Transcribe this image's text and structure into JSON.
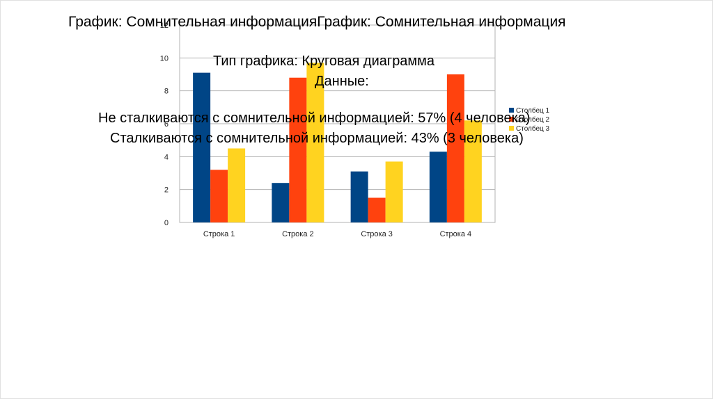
{
  "slide": {
    "title": "График: Сомнительная информацияГрафик: Сомнительная информация",
    "line_type": "Тип графика: Круговая диаграмма",
    "line_data": "Данные:",
    "line_stat1": "Не сталкиваются с сомнительной информацией: 57% (4 человека)",
    "line_stat2": "Сталкиваются с сомнительной информацией: 43% (3 человека)"
  },
  "chart_data": {
    "type": "bar",
    "categories": [
      "Строка 1",
      "Строка 2",
      "Строка 3",
      "Строка 4"
    ],
    "series": [
      {
        "name": "Столбец 1",
        "color": "#004586",
        "values": [
          9.1,
          2.4,
          3.1,
          4.3
        ]
      },
      {
        "name": "Столбец 2",
        "color": "#ff420e",
        "values": [
          3.2,
          8.8,
          1.5,
          9.0
        ]
      },
      {
        "name": "Столбец 3",
        "color": "#ffd320",
        "values": [
          4.5,
          9.7,
          3.7,
          6.2
        ]
      }
    ],
    "ylim": [
      0,
      12
    ],
    "yticks": [
      "0",
      "2",
      "4",
      "6",
      "8",
      "10",
      "12"
    ],
    "grid": true,
    "legend": "right"
  }
}
